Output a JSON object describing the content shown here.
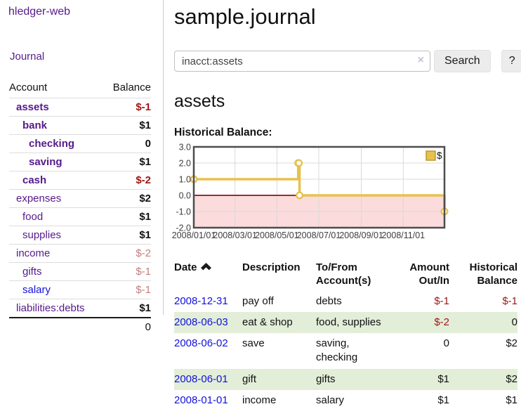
{
  "colors": {
    "link_purple": "#551a8b",
    "link_blue": "#1111dd",
    "negative_strong": "#9e1616",
    "negative_soft": "#c47e7e",
    "row_highlight_green": "#e2eed8",
    "chart_series_gold": "#e8c14d",
    "chart_negative_region_pink": "#fbdbdb",
    "chart_zero_line_red": "#8b1414"
  },
  "icons": {
    "search_clear": "×",
    "date_sort": "chevron-up"
  },
  "sidebar": {
    "brand": "hledger-web",
    "nav": {
      "journal": "Journal"
    },
    "accounts": {
      "header": {
        "account": "Account",
        "balance": "Balance"
      },
      "rows": [
        {
          "name": "assets",
          "balance": "$-1",
          "depth": 1,
          "emph": "bold",
          "name_style": "",
          "balance_style": "neg"
        },
        {
          "name": "bank",
          "balance": "$1",
          "depth": 2,
          "emph": "bold",
          "name_style": "",
          "balance_style": ""
        },
        {
          "name": "checking",
          "balance": "0",
          "depth": 3,
          "emph": "bold",
          "name_style": "",
          "balance_style": ""
        },
        {
          "name": "saving",
          "balance": "$1",
          "depth": 3,
          "emph": "bold",
          "name_style": "",
          "balance_style": ""
        },
        {
          "name": "cash",
          "balance": "$-2",
          "depth": 2,
          "emph": "bold",
          "name_style": "",
          "balance_style": "neg"
        },
        {
          "name": "expenses",
          "balance": "$2",
          "depth": 1,
          "emph": "",
          "name_style": "",
          "balance_style": ""
        },
        {
          "name": "food",
          "balance": "$1",
          "depth": 2,
          "emph": "",
          "name_style": "",
          "balance_style": ""
        },
        {
          "name": "supplies",
          "balance": "$1",
          "depth": 2,
          "emph": "",
          "name_style": "",
          "balance_style": ""
        },
        {
          "name": "income",
          "balance": "$-2",
          "depth": 1,
          "emph": "",
          "name_style": "",
          "balance_style": "negsoft"
        },
        {
          "name": "gifts",
          "balance": "$-1",
          "depth": 2,
          "emph": "",
          "name_style": "",
          "balance_style": "negsoft"
        },
        {
          "name": "salary",
          "balance": "$-1",
          "depth": 2,
          "emph": "",
          "name_style": "blue",
          "balance_style": "negsoft"
        },
        {
          "name": "liabilities:debts",
          "balance": "$1",
          "depth": 1,
          "emph": "",
          "name_style": "",
          "balance_style": ""
        }
      ],
      "total": "0"
    }
  },
  "main": {
    "title": "sample.journal",
    "search": {
      "value": "inacct:assets",
      "clear": "×",
      "submit": "Search",
      "help": "?"
    },
    "account_heading": "assets",
    "chart_heading": "Historical Balance:"
  },
  "chart_data": {
    "type": "line",
    "steps": true,
    "title": "Historical Balance",
    "x_type": "date",
    "x_range": [
      "2008-01-01",
      "2008-12-31"
    ],
    "x_ticks": [
      "2008/01/01",
      "2008/03/01",
      "2008/05/01",
      "2008/07/01",
      "2008/09/01",
      "2008/11/01"
    ],
    "y_ticks": [
      3.0,
      2.0,
      1.0,
      0.0,
      -1.0,
      -2.0
    ],
    "y_range": [
      -2.0,
      3.0
    ],
    "grid": true,
    "negative_region_shaded": true,
    "legend_position": "top-right",
    "legend": [
      {
        "label": "$",
        "color": "#e8c14d"
      }
    ],
    "series": [
      {
        "name": "$",
        "points": [
          [
            "2008-01-01",
            1.0
          ],
          [
            "2008-06-01",
            2.0
          ],
          [
            "2008-06-02",
            2.0
          ],
          [
            "2008-06-03",
            0.0
          ],
          [
            "2008-12-31",
            -1.0
          ]
        ]
      }
    ]
  },
  "register": {
    "columns": [
      "Date",
      "Description",
      "To/From Account(s)",
      "Amount Out/In",
      "Historical Balance"
    ],
    "sort": {
      "column": "Date",
      "direction": "ascending"
    },
    "rows": [
      {
        "date": "2008-12-31",
        "description": "pay off",
        "accounts": "debts",
        "amount": "$-1",
        "balance": "$-1",
        "amount_style": "neg",
        "balance_style": "neg"
      },
      {
        "date": "2008-06-03",
        "description": "eat & shop",
        "accounts": "food, supplies",
        "amount": "$-2",
        "balance": "0",
        "amount_style": "neg",
        "balance_style": ""
      },
      {
        "date": "2008-06-02",
        "description": "save",
        "accounts": "saving, checking",
        "amount": "0",
        "balance": "$2",
        "amount_style": "",
        "balance_style": ""
      },
      {
        "date": "2008-06-01",
        "description": "gift",
        "accounts": "gifts",
        "amount": "$1",
        "balance": "$2",
        "amount_style": "",
        "balance_style": ""
      },
      {
        "date": "2008-01-01",
        "description": "income",
        "accounts": "salary",
        "amount": "$1",
        "balance": "$1",
        "amount_style": "",
        "balance_style": ""
      }
    ]
  }
}
